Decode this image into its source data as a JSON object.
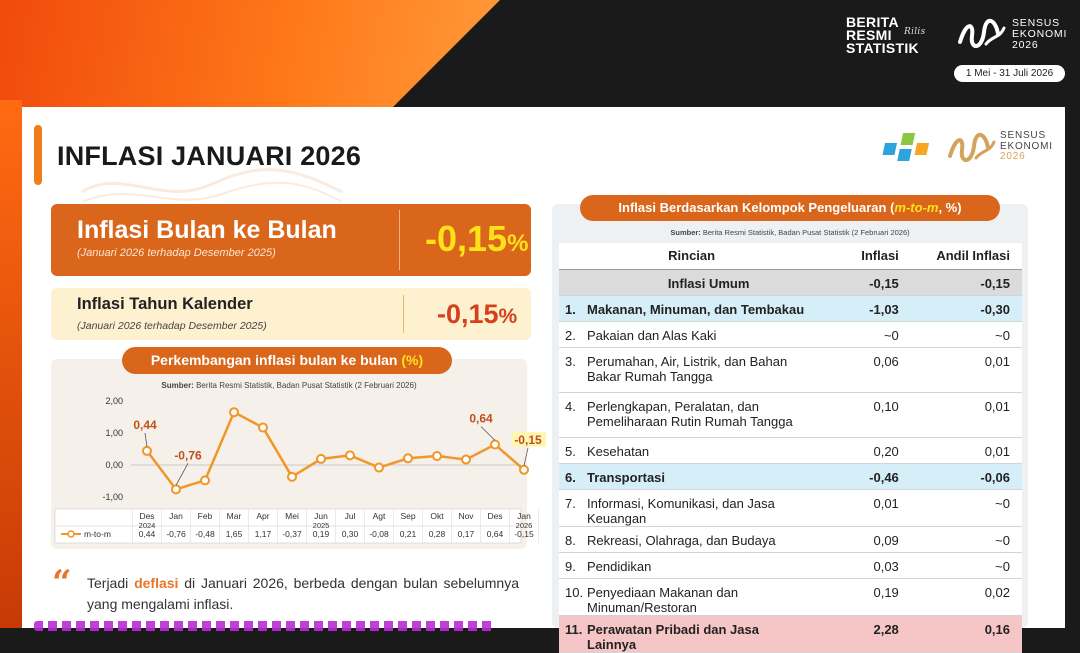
{
  "banner": {
    "brs_lines": [
      "BERITA",
      "RESMI",
      "STATISTIK"
    ],
    "brs_tag": "Rilis",
    "se_lines": [
      "SENSUS",
      "EKONOMI",
      "2026"
    ],
    "date_range": "1 Mei - 31 Juli 2026"
  },
  "slide": {
    "title": "INFLASI JANUARI 2026",
    "logo_se_lines": [
      "SENSUS",
      "EKONOMI",
      "2026"
    ]
  },
  "mtm_card": {
    "label": "Inflasi Bulan ke Bulan",
    "sub": "(Januari 2026 terhadap Desember 2025)",
    "value": "-0,15",
    "unit": "%"
  },
  "ytd_card": {
    "label": "Inflasi Tahun Kalender",
    "sub": "(Januari 2026 terhadap Desember 2025)",
    "value": "-0,15",
    "unit": "%"
  },
  "chart": {
    "pill_prefix": "Perkembangan inflasi bulan ke bulan ",
    "pill_unit": "(%)",
    "source_label": "Sumber:",
    "source_text": " Berita Resmi Statistik, Badan Pusat Statistik (2 Februari 2026)"
  },
  "chart_data": {
    "type": "line",
    "categories": [
      "Des",
      "Jan",
      "Feb",
      "Mar",
      "Apr",
      "Mei",
      "Jun",
      "Jul",
      "Agt",
      "Sep",
      "Okt",
      "Nov",
      "Des",
      "Jan"
    ],
    "year_labels": {
      "0": "2024",
      "6": "2025",
      "13": "2026"
    },
    "series": [
      {
        "name": "m-to-m",
        "values": [
          0.44,
          -0.76,
          -0.48,
          1.65,
          1.17,
          -0.37,
          0.19,
          0.3,
          -0.08,
          0.21,
          0.28,
          0.17,
          0.64,
          -0.15
        ],
        "display_values": [
          "0,44",
          "-0,76",
          "-0,48",
          "1,65",
          "1,17",
          "-0,37",
          "0,19",
          "0,30",
          "-0,08",
          "0,21",
          "0,28",
          "0,17",
          "0,64",
          "-0,15"
        ]
      }
    ],
    "callouts": {
      "0": "0,44",
      "1": "-0,76",
      "12": "0,64",
      "13": "-0,15"
    },
    "yticks": [
      "2,00",
      "1,00",
      "0,00",
      "-1,00"
    ],
    "ylim": [
      -1.0,
      2.0
    ],
    "color": "#f0962a",
    "legend": "bottom-left"
  },
  "quote": {
    "pre": "Terjadi ",
    "highlight": "deflasi",
    "post": " di Januari 2026, berbeda dengan bulan sebelumnya yang mengalami inflasi."
  },
  "table": {
    "pill_prefix": "Inflasi Berdasarkan Kelompok Pengeluaran (",
    "pill_unit": "m-to-m",
    "pill_suffix": ", %)",
    "source_label": "Sumber:",
    "source_text": " Berita Resmi Statistik, Badan Pusat Statistik (2 Februari 2026)",
    "headers": [
      "Rincian",
      "Inflasi",
      "Andil Inflasi"
    ],
    "general": {
      "label": "Inflasi Umum",
      "inflasi": "-0,15",
      "andil": "-0,15"
    },
    "rows": [
      {
        "no": "1.",
        "label": "Makanan, Minuman, dan Tembakau",
        "inflasi": "-1,03",
        "andil": "-0,30",
        "style": "blue"
      },
      {
        "no": "2.",
        "label": "Pakaian dan Alas Kaki",
        "inflasi": "~0",
        "andil": "~0",
        "style": ""
      },
      {
        "no": "3.",
        "label": "Perumahan, Air, Listrik, dan Bahan Bakar Rumah Tangga",
        "inflasi": "0,06",
        "andil": "0,01",
        "style": ""
      },
      {
        "no": "4.",
        "label": "Perlengkapan, Peralatan, dan Pemeliharaan Rutin Rumah Tangga",
        "inflasi": "0,10",
        "andil": "0,01",
        "style": ""
      },
      {
        "no": "5.",
        "label": "Kesehatan",
        "inflasi": "0,20",
        "andil": "0,01",
        "style": ""
      },
      {
        "no": "6.",
        "label": "Transportasi",
        "inflasi": "-0,46",
        "andil": "-0,06",
        "style": "blue"
      },
      {
        "no": "7.",
        "label": "Informasi, Komunikasi, dan Jasa Keuangan",
        "inflasi": "0,01",
        "andil": "~0",
        "style": ""
      },
      {
        "no": "8.",
        "label": "Rekreasi, Olahraga, dan Budaya",
        "inflasi": "0,09",
        "andil": "~0",
        "style": ""
      },
      {
        "no": "9.",
        "label": "Pendidikan",
        "inflasi": "0,03",
        "andil": "~0",
        "style": ""
      },
      {
        "no": "10.",
        "label": "Penyediaan Makanan dan Minuman/Restoran",
        "inflasi": "0,19",
        "andil": "0,02",
        "style": ""
      },
      {
        "no": "11.",
        "label": "Perawatan Pribadi dan Jasa Lainnya",
        "inflasi": "2,28",
        "andil": "0,16",
        "style": "pink"
      }
    ]
  }
}
